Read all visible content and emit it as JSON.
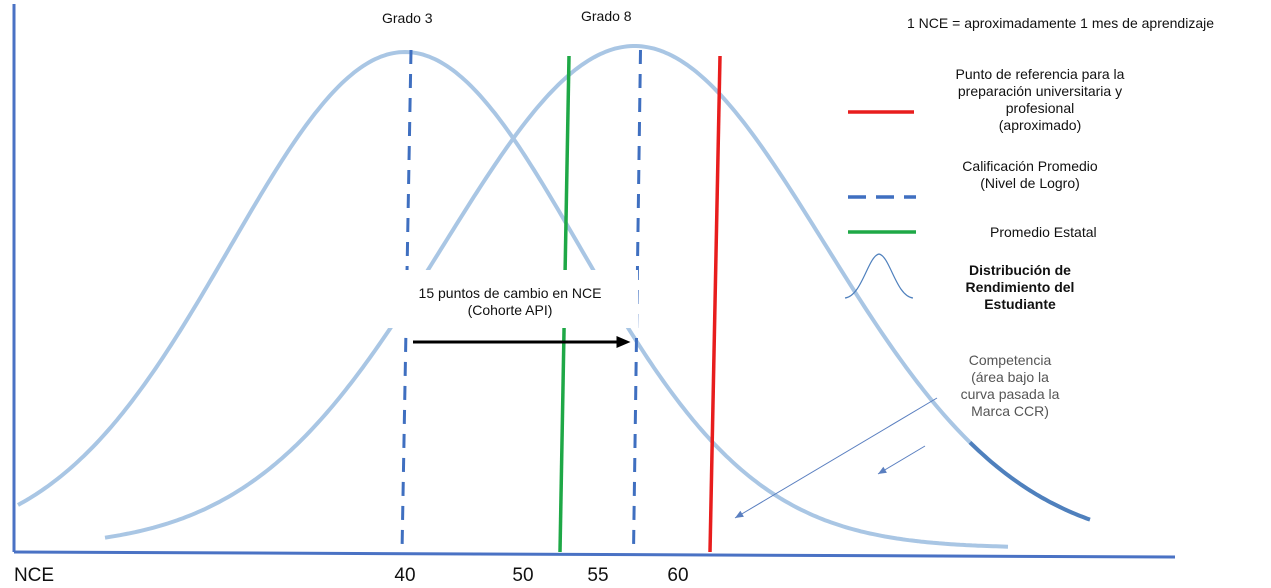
{
  "chart_data": {
    "type": "line",
    "xlabel": "NCE",
    "x_ticks": [
      40,
      50,
      55,
      60
    ],
    "note": "1 NCE = aproximadamente 1 mes de aprendizaje",
    "series": [
      {
        "name": "Grado 3",
        "mean": 40
      },
      {
        "name": "Grado 8",
        "mean": 55
      }
    ],
    "state_average": 50,
    "ccr_benchmark": 60,
    "arrow": {
      "from": 40,
      "to": 55,
      "label": "15 puntos de cambio en NCE\n(Cohorte API)"
    },
    "legend": [
      {
        "key": "ccr",
        "label": "Punto de referencia para la\npreparación universitaria y\nprofesional\n(aproximado)"
      },
      {
        "key": "avg",
        "label": "Calificación Promedio\n(Nivel de Logro)"
      },
      {
        "key": "state",
        "label": "Promedio Estatal"
      },
      {
        "key": "dist",
        "label": "Distribución de\nRendimiento del\nEstudiante"
      }
    ],
    "annotation": "Competencia\n(área bajo la\ncurva pasada la\nMarca CCR)",
    "colors": {
      "curve": "#a9c6e4",
      "curve_dark": "#4f80bd",
      "dashed": "#3f6fc0",
      "state": "#1ea846",
      "ccr": "#e81d1d",
      "axis": "#4a72c4",
      "arrow": "#000000"
    }
  }
}
